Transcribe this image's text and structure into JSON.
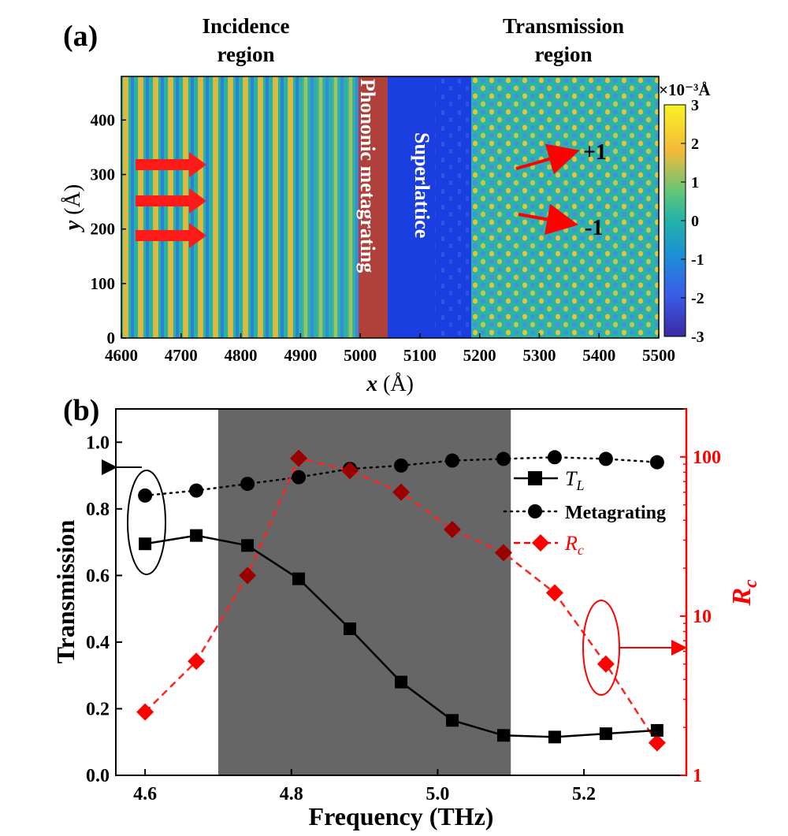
{
  "panel_a": {
    "label": "(a)",
    "header_incidence": [
      "Incidence",
      "region"
    ],
    "header_transmission": [
      "Transmission",
      "region"
    ],
    "band_metagrating_text": "Phononic metagrating",
    "band_superlattice_text": "Superlattice",
    "order_plus": "+1",
    "order_minus": "-1",
    "colorbar_unit": "×10⁻³Å",
    "colors": {
      "arrow": "#ff1a1a",
      "metagrating_band": "#b0403a",
      "superlattice_band": "#1a3ee0"
    }
  },
  "panel_b": {
    "label": "(b)",
    "colors": {
      "shade": "#666666",
      "tl": "#000000",
      "metagrating": "#000000",
      "rc": "#8b0000",
      "rc_axis": "#ff0000"
    }
  },
  "chart_data": [
    {
      "type": "heatmap",
      "panel": "a",
      "xlabel": "x (Å)",
      "ylabel": "y (Å)",
      "x_ticks": [
        4600,
        4700,
        4800,
        4900,
        5000,
        5100,
        5200,
        5300,
        5400,
        5500
      ],
      "y_ticks": [
        0,
        100,
        200,
        300,
        400
      ],
      "xlim": [
        4600,
        5500
      ],
      "ylim": [
        0,
        480
      ],
      "regions": [
        {
          "name": "Incidence region",
          "x": [
            4600,
            5000
          ]
        },
        {
          "name": "Phononic metagrating",
          "x": [
            5000,
            5045
          ]
        },
        {
          "name": "Superlattice",
          "x": [
            5045,
            5185
          ]
        },
        {
          "name": "Transmission region",
          "x": [
            5185,
            5500
          ]
        }
      ],
      "colorbar": {
        "range": [
          -3,
          3
        ],
        "ticks": [
          3,
          2,
          1,
          0,
          -1,
          -2,
          -3
        ],
        "unit": "×10⁻³Å"
      },
      "annotations": [
        "+1",
        "-1"
      ]
    },
    {
      "type": "line",
      "panel": "b",
      "xlabel": "Frequency (THz)",
      "ylabel": "Transmission",
      "y2label": "R",
      "y2label_sub": "c",
      "xlim": [
        4.56,
        5.34
      ],
      "ylim": [
        0.0,
        1.1
      ],
      "y2lim": [
        1,
        200
      ],
      "y2scale": "log",
      "x_ticks": [
        "4.6",
        "4.8",
        "5.0",
        "5.2"
      ],
      "y_ticks": [
        "0.0",
        "0.2",
        "0.4",
        "0.6",
        "0.8",
        "1.0"
      ],
      "y2_ticks": [
        "1",
        "10",
        "100"
      ],
      "shaded_band": [
        4.7,
        5.1
      ],
      "x": [
        4.6,
        4.67,
        4.74,
        4.81,
        4.88,
        4.95,
        5.02,
        5.09,
        5.16,
        5.23,
        5.3
      ],
      "series": [
        {
          "name": "T",
          "name_sub": "L",
          "axis": "left",
          "marker": "square",
          "style": "solid",
          "values": [
            0.695,
            0.72,
            0.69,
            0.59,
            0.44,
            0.28,
            0.165,
            0.12,
            0.115,
            0.125,
            0.135
          ]
        },
        {
          "name": "Metagrating",
          "axis": "left",
          "marker": "circle",
          "style": "dotted",
          "values": [
            0.84,
            0.855,
            0.875,
            0.895,
            0.92,
            0.93,
            0.945,
            0.95,
            0.955,
            0.95,
            0.94
          ]
        },
        {
          "name": "R",
          "name_sub": "c",
          "axis": "right",
          "marker": "diamond",
          "style": "dashed",
          "values": [
            2.5,
            5.2,
            18,
            98,
            82,
            60,
            35,
            25,
            14,
            5,
            1.6
          ]
        }
      ]
    }
  ]
}
